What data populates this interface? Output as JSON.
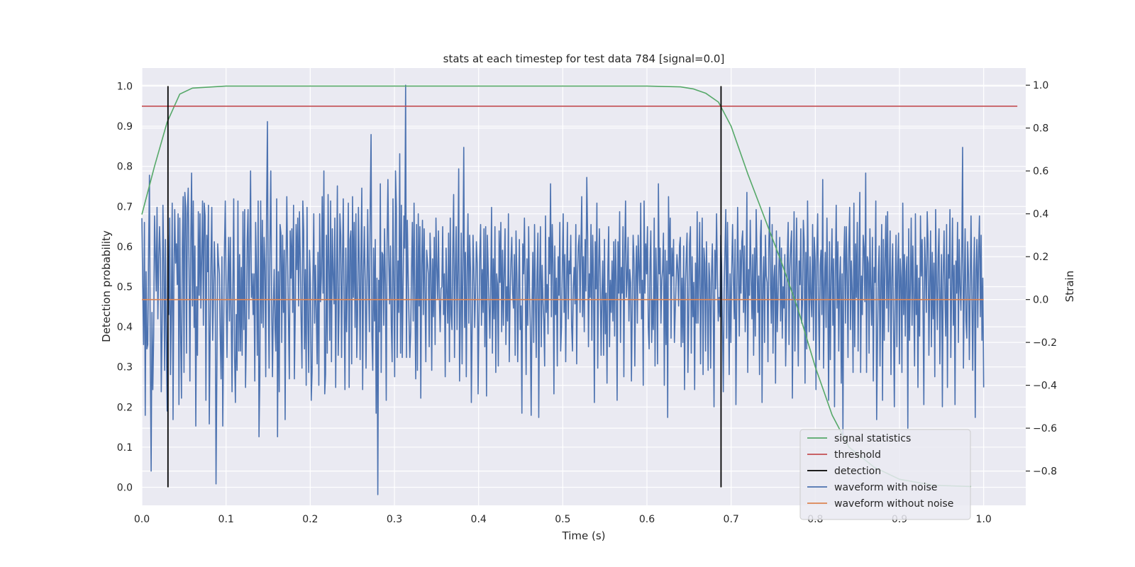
{
  "chart_data": {
    "type": "line",
    "title": "stats at each timestep for test data 784 [signal=0.0]",
    "xlabel": "Time (s)",
    "ylabel_left": "Detection probability",
    "ylabel_right": "Strain",
    "xlim": [
      0.0,
      1.05
    ],
    "ylim_left": [
      -0.045,
      1.045
    ],
    "ylim_right": [
      -0.96,
      1.08
    ],
    "x_ticks": [
      "0.0",
      "0.1",
      "0.2",
      "0.3",
      "0.4",
      "0.5",
      "0.6",
      "0.7",
      "0.8",
      "0.9",
      "1.0"
    ],
    "y_left_ticks": [
      "0.0",
      "0.1",
      "0.2",
      "0.3",
      "0.4",
      "0.5",
      "0.6",
      "0.7",
      "0.8",
      "0.9",
      "1.0"
    ],
    "y_right_ticks": [
      "−0.8",
      "−0.6",
      "−0.4",
      "−0.2",
      "0.0",
      "0.2",
      "0.4",
      "0.6",
      "0.8",
      "1.0"
    ],
    "grid": true,
    "legend_position": "lower-right",
    "legend": [
      "signal statistics",
      "threshold",
      "detection",
      "waveform with noise",
      "waveform without noise"
    ],
    "series": [
      {
        "name": "signal statistics",
        "axis": "left",
        "color": "#55a868",
        "x": [
          0.0,
          0.015,
          0.03,
          0.045,
          0.06,
          0.1,
          0.2,
          0.3,
          0.4,
          0.5,
          0.6,
          0.64,
          0.655,
          0.67,
          0.685,
          0.7,
          0.72,
          0.74,
          0.76,
          0.78,
          0.8,
          0.82,
          0.84,
          0.87,
          0.9,
          0.94,
          0.985
        ],
        "values": [
          0.68,
          0.8,
          0.91,
          0.98,
          0.995,
          1.0,
          1.0,
          1.0,
          1.0,
          1.0,
          1.0,
          0.998,
          0.993,
          0.982,
          0.96,
          0.9,
          0.78,
          0.67,
          0.56,
          0.44,
          0.3,
          0.18,
          0.1,
          0.05,
          0.02,
          0.005,
          0.002
        ]
      },
      {
        "name": "threshold",
        "axis": "left",
        "color": "#c44e52",
        "x": [
          0.0,
          1.04
        ],
        "values": [
          0.95,
          0.95
        ]
      },
      {
        "name": "detection",
        "axis": "left",
        "color": "#000000",
        "x": [
          0.031,
          0.688
        ],
        "values": [
          1.0,
          1.0
        ]
      },
      {
        "name": "waveform with noise",
        "axis": "right",
        "color": "#4c72b0",
        "x_start": 0.0,
        "x_end": 1.0,
        "values": [
          0.38,
          0.07,
          -0.21,
          0.36,
          -0.54,
          0.13,
          -0.23,
          -0.21,
          0.23,
          0.58,
          -0.28,
          -0.8,
          -0.06,
          -0.42,
          -0.17,
          0.39,
          0.21,
          0.04,
          0.43,
          -0.09,
          0.19,
          0.34,
          0.19,
          -0.43,
          -0.14,
          0.44,
          0.18,
          -0.33,
          0.28,
          -0.19,
          -0.52,
          0.3,
          -0.07,
          0.38,
          -0.35,
          -0.04,
          0.45,
          -0.56,
          0.11,
          0.42,
          0.17,
          0.26,
          0.07,
          0.4,
          -0.49,
          0.38,
          -0.16,
          -0.46,
          0.24,
          0.48,
          -0.34,
          0.5,
          0.43,
          -0.25,
          0.4,
          0.52,
          0.14,
          -0.38,
          0.27,
          0.59,
          -0.03,
          0.46,
          -0.13,
          0.25,
          -0.59,
          0.06,
          -0.26,
          0.41,
          0.02,
          0.4,
          -0.04,
          0.2,
          0.46,
          -0.12,
          0.45,
          0.39,
          -0.47,
          0.3,
          0.13,
          0.44,
          -0.58,
          -0.16,
          0.19,
          0.43,
          -0.19,
          0.02,
          0.27,
          0.1,
          -0.86,
          -0.34,
          0.26,
          0.17,
          0.12,
          -0.17,
          -0.37,
          0.2,
          -0.59,
          -0.15,
          0.24,
          0.46,
          0.03,
          -0.27,
          0.06,
          0.29,
          -0.1,
          0.29,
          -0.07,
          -0.43,
          0.06,
          0.47,
          -0.26,
          -0.48,
          -0.07,
          -0.33,
          0.46,
          -0.24,
          0.21,
          -0.24,
          0.15,
          -0.26,
          0.41,
          -0.14,
          0.42,
          -0.41,
          -0.17,
          0.28,
          0.42,
          -0.09,
          0.24,
          0.6,
          0.01,
          0.12,
          -0.07,
          0.12,
          -0.38,
          0.36,
          0.14,
          -0.26,
          0.46,
          -0.64,
          -0.35,
          0.46,
          -0.11,
          0.37,
          -0.13,
          0.29,
          0.16,
          -0.36,
          0.41,
          0.83,
          0.0,
          -0.32,
          0.27,
          0.6,
          -0.02,
          -0.36,
          -0.04,
          0.14,
          -0.13,
          -0.24,
          0.47,
          -0.64,
          0.13,
          -0.43,
          0.35,
          0.31,
          -0.2,
          0.3,
          -0.06,
          0.23,
          -0.56,
          0.14,
          0.48,
          0.17,
          -0.1,
          -0.37,
          0.32,
          0.1,
          0.33,
          -0.06,
          0.44,
          -0.37,
          -0.07,
          0.35,
          0.14,
          0.38,
          -0.03,
          0.41,
          0.19,
          -0.1,
          -0.32,
          0.46,
          0.32,
          -0.23,
          0.14,
          -0.4,
          0.43,
          -0.09,
          -0.34,
          0.23,
          0.07,
          -0.47,
          -0.34,
          0.1,
          0.4,
          -0.11,
          0.16,
          -0.06,
          -0.3,
          0.22,
          -0.4,
          0.4,
          -0.01,
          0.11,
          0.48,
          0.03,
          0.6,
          -0.44,
          -0.35,
          0.3,
          -0.25,
          0.49,
          0.15,
          -0.19,
          0.46,
          -0.29,
          0.33,
          0.12,
          -0.02,
          0.38,
          -0.41,
          0.12,
          0.53,
          -0.26,
          -0.06,
          0.4,
          0.3,
          -0.27,
          0.15,
          0.47,
          -0.03,
          -0.42,
          0.24,
          -0.15,
          0.09,
          0.45,
          -0.41,
          0.28,
          0.32,
          -0.3,
          0.48,
          0.01,
          0.36,
          -0.13,
          0.4,
          -0.27,
          -0.07,
          0.43,
          0.16,
          -0.28,
          0.2,
          0.52,
          -0.42,
          0.1,
          0.34,
          0.09,
          -0.32,
          0.04,
          0.42,
          0.07,
          -0.15,
          0.44,
          0.77,
          -0.17,
          -0.33,
          0.24,
          -0.1,
          0.28,
          -0.53,
          0.1,
          -0.91,
          0.09,
          -0.15,
          0.54,
          -0.34,
          0.22,
          0.21,
          -0.12,
          0.33,
          0.07,
          -0.47,
          0.25,
          0.56,
          0.19,
          -0.02,
          0.25,
          -0.12,
          -0.29,
          0.47,
          0.08,
          -0.36,
          0.6,
          0.43,
          -0.27,
          0.18,
          -0.06,
          0.68,
          -0.25,
          0.44,
          -0.27,
          0.06,
          0.39,
          0.24,
          1.0,
          -0.27,
          0.37,
          0.12,
          -0.09,
          -0.27,
          -0.15,
          0.14,
          0.36,
          -0.1,
          0.45,
          0.01,
          -0.37,
          0.35,
          -0.33,
          0.4,
          -0.03,
          0.34,
          -0.46,
          0.16,
          0.37,
          -0.07,
          0.33,
          0.03,
          -0.29,
          0.23,
          0.17,
          0.12,
          -0.22,
          0.31,
          0.16,
          -0.33,
          0.19,
          -0.08,
          0.29,
          -0.21,
          0.38,
          0.15,
          0.0,
          0.32,
          0.01,
          -0.15,
          0.05,
          0.06,
          0.34,
          -0.07,
          0.12,
          -0.36,
          0.24,
          0.04,
          -0.11,
          0.31,
          -0.29,
          0.38,
          -0.07,
          -0.14,
          0.23,
          0.49,
          -0.27,
          0.14,
          0.34,
          -0.14,
          0.14,
          0.61,
          -0.38,
          -0.08,
          0.31,
          -0.3,
          0.16,
          0.71,
          -0.13,
          0.22,
          -0.36,
          0.13,
          0.4,
          -0.11,
          0.3,
          0.14,
          -0.48,
          -0.12,
          0.3,
          0.14,
          -0.13,
          0.05,
          0.27,
          0.17,
          -0.44,
          -0.09,
          0.21,
          0.35,
          -0.12,
          0.14,
          -0.06,
          0.33,
          -0.22,
          0.34,
          -0.45,
          0.3,
          0.14,
          -0.02,
          -0.18,
          0.06,
          0.43,
          -0.25,
          0.19,
          -0.09,
          0.34,
          -0.34,
          0.12,
          0.07,
          -0.31,
          0.32,
          0.08,
          0.36,
          -0.15,
          0.23,
          -0.12,
          0.13,
          0.33,
          -0.21,
          0.06,
          -0.1,
          0.4,
          -0.29,
          0.02,
          0.18,
          0.29,
          0.03,
          -0.04,
          0.21,
          -0.26,
          0.32,
          0.12,
          -0.29,
          0.02,
          0.28,
          -0.14,
          -0.03,
          -0.53,
          0.26,
          0.12,
          0.38,
          0.06,
          -0.35,
          0.19,
          -0.12,
          0.34,
          0.04,
          -0.13,
          -0.54,
          -0.03,
          0.22,
          -0.2,
          0.35,
          0.01,
          -0.27,
          0.13,
          0.31,
          -0.55,
          0.08,
          0.34,
          -0.22,
          0.16,
          0.0,
          -0.1,
          -0.31,
          0.39,
          -0.06,
          0.07,
          -0.16,
          0.29,
          0.12,
          0.54,
          -0.08,
          0.35,
          0.17,
          -0.44,
          0.25,
          -0.07,
          0.1,
          -0.31,
          0.2,
          0.02,
          0.36,
          -0.24,
          -0.13,
          0.15,
          0.4,
          -0.06,
          0.21,
          -0.29,
          0.08,
          0.36,
          -0.09,
          0.18,
          0.12,
          0.3,
          -0.12,
          -0.24,
          0.06,
          0.15,
          -0.02,
          0.35,
          -0.3,
          0.12,
          0.25,
          0.3,
          -0.06,
          0.23,
          0.48,
          -0.08,
          0.2,
          -0.15,
          0.28,
          0.04,
          0.57,
          0.3,
          -0.22,
          0.12,
          0.01,
          0.35,
          -0.19,
          0.3,
          0.1,
          -0.48,
          0.27,
          0.05,
          0.45,
          -0.32,
          0.14,
          0.33,
          0.06,
          -0.26,
          0.03,
          0.18,
          -0.26,
          0.28,
          -0.16,
          0.03,
          -0.39,
          0.14,
          0.34,
          -0.22,
          0.09,
          -0.06,
          0.18,
          -0.1,
          0.27,
          -0.17,
          0.28,
          0.09,
          -0.47,
          0.27,
          0.03,
          0.41,
          -0.2,
          0.15,
          0.03,
          0.34,
          -0.36,
          0.21,
          0.46,
          0.01,
          0.1,
          0.29,
          -0.1,
          0.14,
          0.08,
          -0.38,
          -0.02,
          0.3,
          0.19,
          -0.31,
          0.1,
          0.25,
          -0.11,
          0.3,
          0.15,
          0.03,
          0.45,
          -0.09,
          0.09,
          -0.4,
          0.46,
          0.03,
          0.26,
          0.12,
          0.34,
          -0.13,
          -0.23,
          0.17,
          0.32,
          -0.2,
          0.0,
          -0.14,
          0.38,
          -0.31,
          0.24,
          0.06,
          -0.3,
          0.54,
          0.12,
          0.24,
          -0.11,
          0.09,
          0.14,
          0.31,
          -0.4,
          0.23,
          -0.21,
          0.18,
          -0.55,
          0.48,
          0.12,
          0.38,
          -0.18,
          0.24,
          0.11,
          0.28,
          -0.2,
          -0.05,
          0.08,
          0.21,
          0.14,
          -0.03,
          0.25,
          0.29,
          -0.22,
          0.1,
          -0.2,
          0.25,
          -0.42,
          0.07,
          0.19,
          0.31,
          -0.34,
          -0.07,
          0.26,
          0.34,
          -0.25,
          0.2,
          -0.08,
          0.08,
          -0.42,
          0.17,
          -0.11,
          0.41,
          -0.11,
          0.13,
          0.36,
          -0.3,
          0.04,
          0.38,
          -0.35,
          0.24,
          0.17,
          -0.24,
          0.27,
          0.03,
          -0.33,
          0.17,
          0.08,
          -0.32,
          0.11,
          0.26,
          0.0,
          -0.5,
          0.23,
          0.05,
          0.4,
          0.11,
          -0.1,
          0.01,
          -0.08,
          0.3,
          0.16,
          -0.12,
          -0.43,
          0.04,
          0.23,
          0.42,
          -0.18,
          0.36,
          0.02,
          -0.35,
          0.12,
          -0.2,
          0.14,
          0.35,
          0.09,
          -0.09,
          0.28,
          -0.49,
          0.0,
          0.43,
          0.12,
          -0.17,
          0.23,
          0.03,
          0.27,
          0.32,
          -0.06,
          0.25,
          -0.15,
          0.04,
          0.5,
          -0.34,
          0.14,
          0.02,
          0.37,
          0.11,
          -0.09,
          0.21,
          -0.26,
          0.24,
          -0.17,
          0.42,
          0.19,
          -0.06,
          0.11,
          -0.35,
          0.29,
          0.37,
          -0.48,
          0.07,
          0.2,
          -0.2,
          0.3,
          0.11,
          0.08,
          -0.29,
          0.24,
          0.43,
          0.06,
          -0.11,
          0.35,
          -0.25,
          0.1,
          0.16,
          -0.39,
          0.32,
          -0.15,
          0.0,
          0.16,
          0.29,
          -0.1,
          0.24,
          -0.18,
          0.06,
          -0.04,
          0.21,
          -0.31,
          -0.08,
          0.2,
          0.36,
          -0.21,
          0.14,
          0.25,
          0.32,
          -0.46,
          0.03,
          0.41,
          -0.24,
          0.12,
          0.38,
          0.01,
          -0.31,
          0.18,
          0.07,
          0.33,
          -0.11,
          -0.02,
          0.37,
          0.27,
          -0.39,
          0.22,
          -0.23,
          0.46,
          0.11,
          -0.15,
          0.2,
          0.01,
          -0.08,
          0.35,
          -0.19,
          0.29,
          0.18,
          -0.42,
          0.2,
          0.4,
          -0.04,
          -0.28,
          0.16,
          0.23,
          -0.07,
          0.56,
          -0.32,
          0.06,
          0.22,
          -0.13,
          0.38,
          0.02,
          -0.47,
          0.27,
          -0.28,
          0.12,
          0.33,
          -0.12,
          0.19,
          -0.5,
          0.1,
          0.44,
          -0.04,
          0.27,
          -0.24,
          0.08,
          0.2,
          -0.39,
          0.12,
          -0.63,
          0.18,
          0.34,
          -0.11,
          0.34,
          0.12,
          -0.27,
          0.25,
          0.43,
          -0.14,
          0.18,
          0.04,
          -0.34,
          0.45,
          -0.22,
          0.26,
          0.01,
          0.36,
          -0.24,
          0.14,
          0.5,
          -0.34,
          0.11,
          -0.07,
          0.3,
          0.24,
          -0.01,
          0.59,
          -0.34,
          0.2,
          0.17,
          -0.25,
          0.33,
          0.05,
          -0.12,
          0.29,
          -0.38,
          0.15,
          0.08,
          0.46,
          -0.56,
          -0.19,
          0.12,
          0.25,
          -0.31,
          0.08,
          0.35,
          -0.47,
          0.28,
          -0.19,
          0.19,
          0.39,
          -0.04,
          0.41,
          -0.15,
          0.1,
          0.32,
          -0.35,
          0.1,
          0.26,
          -0.09,
          -0.5,
          0.04,
          0.3,
          -0.22,
          0.16,
          0.31,
          -0.3,
          0.19,
          0.1,
          -0.34,
          0.45,
          -0.07,
          0.21,
          -0.17,
          0.13,
          0.2,
          -0.6,
          0.33,
          -0.19,
          0.06,
          0.38,
          -0.12,
          0.25,
          0.0,
          -0.31,
          0.4,
          -0.07,
          0.16,
          -0.41,
          0.1,
          -0.17,
          0.39,
          0.11,
          0.28,
          -0.02,
          -0.49,
          0.29,
          0.14,
          -0.06,
          0.41,
          0.26,
          -0.26,
          0.07,
          0.32,
          -0.22,
          0.22,
          -0.09,
          0.17,
          -0.36,
          0.42,
          0.08,
          -0.14,
          0.2,
          0.33,
          -0.3,
          0.03,
          0.21,
          -0.5,
          0.11,
          0.32,
          0.02,
          -0.17,
          0.35,
          -0.41,
          0.21,
          0.1,
          0.42,
          -0.27,
          0.05,
          0.38,
          -0.12,
          0.16,
          -0.49,
          0.18,
          0.03,
          0.36,
          -0.2,
          0.28,
          0.06,
          -0.05,
          0.21,
          0.71,
          -0.32,
          0.05,
          0.33,
          -0.1,
          -0.18,
          0.27,
          0.12,
          -0.28,
          0.06,
          0.39,
          0.02,
          -0.33,
          0.09,
          0.29,
          -0.55,
          0.14,
          0.28,
          -0.13,
          0.22,
          0.39,
          -0.08,
          0.3,
          -0.19,
          0.1,
          -0.41
        ]
      },
      {
        "name": "waveform without noise",
        "axis": "right",
        "color": "#dd8452",
        "x": [
          0.0,
          1.0
        ],
        "values": [
          0.0,
          0.0
        ]
      }
    ]
  }
}
